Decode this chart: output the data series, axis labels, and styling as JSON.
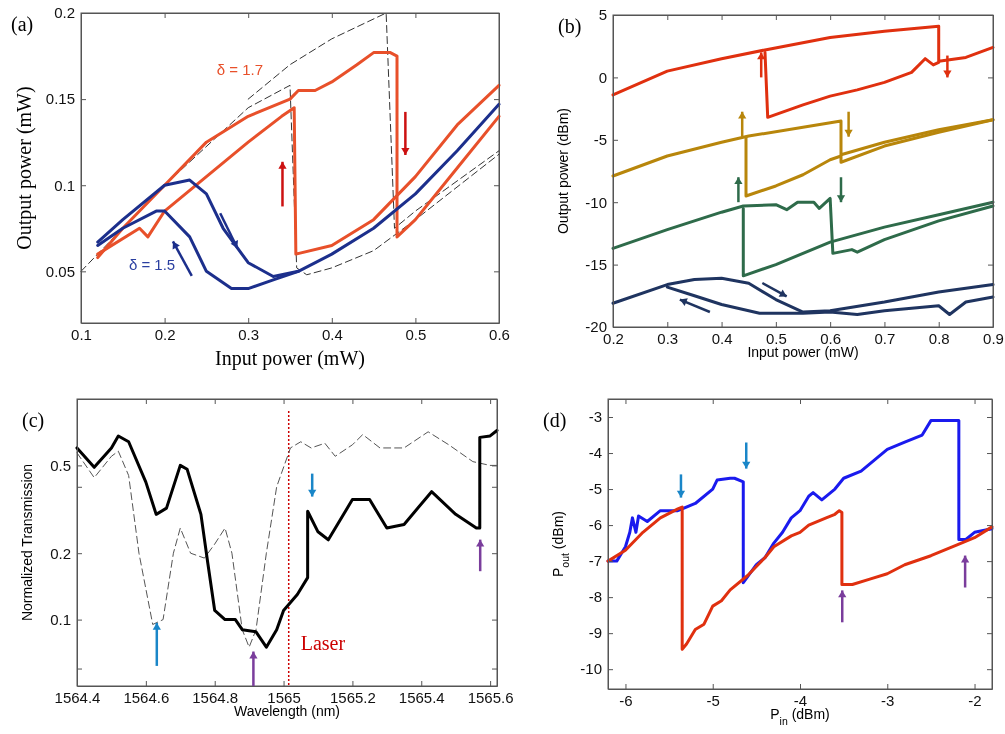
{
  "chart_data": [
    {
      "type": "line",
      "title": "(a)",
      "xlabel": "Input power (mW)",
      "ylabel": "Output power (mW)",
      "xlim": [
        0.1,
        0.6
      ],
      "ylim": [
        0.02,
        0.2
      ],
      "xticks": [
        0.1,
        0.2,
        0.3,
        0.4,
        0.5,
        0.6
      ],
      "yticks": [
        0.05,
        0.1,
        0.15,
        0.2
      ],
      "grid": false,
      "annotations": [
        "δ = 1.7",
        "δ = 1.5"
      ],
      "series": [
        {
          "color": "#333333",
          "line_style": "dashed",
          "x": [
            0.1,
            0.2,
            0.3,
            0.35,
            0.358,
            0.37,
            0.4,
            0.45,
            0.5,
            0.6
          ],
          "values": [
            0.05,
            0.1,
            0.145,
            0.158,
            0.052,
            0.048,
            0.052,
            0.062,
            0.08,
            0.118
          ]
        },
        {
          "color": "#333333",
          "line_style": "dashed",
          "x": [
            0.3,
            0.35,
            0.4,
            0.465,
            0.475,
            0.5,
            0.6
          ],
          "values": [
            0.15,
            0.17,
            0.185,
            0.2,
            0.075,
            0.085,
            0.12
          ]
        },
        {
          "color": "#e8502a",
          "x": [
            0.12,
            0.15,
            0.2,
            0.25,
            0.3,
            0.35,
            0.36,
            0.38,
            0.4,
            0.43,
            0.45,
            0.47,
            0.478,
            0.478,
            0.5,
            0.55,
            0.6
          ],
          "values": [
            0.058,
            0.075,
            0.1,
            0.125,
            0.14,
            0.15,
            0.155,
            0.155,
            0.16,
            0.17,
            0.177,
            0.177,
            0.175,
            0.07,
            0.08,
            0.11,
            0.14
          ]
        },
        {
          "color": "#e8502a",
          "x": [
            0.12,
            0.17,
            0.18,
            0.2,
            0.25,
            0.3,
            0.34,
            0.355,
            0.357,
            0.4,
            0.45,
            0.5,
            0.55,
            0.6
          ],
          "values": [
            0.06,
            0.075,
            0.07,
            0.085,
            0.105,
            0.125,
            0.14,
            0.145,
            0.06,
            0.065,
            0.08,
            0.105,
            0.135,
            0.158
          ]
        },
        {
          "color": "#1c2f8c",
          "x": [
            0.12,
            0.15,
            0.2,
            0.23,
            0.25,
            0.27,
            0.3,
            0.33,
            0.36,
            0.4,
            0.45,
            0.5,
            0.55,
            0.6
          ],
          "values": [
            0.067,
            0.08,
            0.1,
            0.103,
            0.095,
            0.075,
            0.055,
            0.047,
            0.05,
            0.06,
            0.075,
            0.095,
            0.12,
            0.147
          ]
        },
        {
          "color": "#1c2f8c",
          "x": [
            0.12,
            0.15,
            0.19,
            0.2,
            0.23,
            0.25,
            0.28,
            0.3,
            0.33,
            0.36
          ],
          "values": [
            0.065,
            0.075,
            0.085,
            0.085,
            0.07,
            0.05,
            0.04,
            0.04,
            0.045,
            0.05
          ]
        }
      ]
    },
    {
      "type": "line",
      "title": "(b)",
      "xlabel": "Input power (mW)",
      "ylabel": "Output power (dBm)",
      "xlim": [
        0.2,
        0.9
      ],
      "ylim": [
        -20,
        5
      ],
      "xticks": [
        0.2,
        0.3,
        0.4,
        0.5,
        0.6,
        0.7,
        0.8,
        0.9
      ],
      "yticks": [
        -20,
        -15,
        -10,
        -5,
        0,
        5
      ],
      "grid": false,
      "series": [
        {
          "color": "#e0300f",
          "x": [
            0.2,
            0.3,
            0.4,
            0.48,
            0.6,
            0.7,
            0.8,
            0.8,
            0.85,
            0.9
          ],
          "values": [
            -1.4,
            0.5,
            1.5,
            2.2,
            3.2,
            3.7,
            4.1,
            1.3,
            1.6,
            2.4
          ]
        },
        {
          "color": "#e0300f",
          "x": [
            0.48,
            0.485,
            0.55,
            0.6,
            0.65,
            0.7,
            0.75,
            0.775,
            0.79,
            0.8
          ],
          "values": [
            2.0,
            -3.2,
            -2.2,
            -1.5,
            -1.0,
            -0.4,
            0.4,
            1.5,
            1.0,
            1.2
          ]
        },
        {
          "color": "#b8860b",
          "x": [
            0.2,
            0.3,
            0.4,
            0.45,
            0.55,
            0.62,
            0.62,
            0.7,
            0.8,
            0.9
          ],
          "values": [
            -7.9,
            -6.3,
            -5.2,
            -4.7,
            -4.0,
            -3.5,
            -6.2,
            -5.2,
            -4.2,
            -3.4
          ]
        },
        {
          "color": "#b8860b",
          "x": [
            0.445,
            0.445,
            0.5,
            0.55,
            0.6,
            0.62,
            0.62,
            0.7,
            0.8,
            0.9
          ],
          "values": [
            -4.8,
            -9.5,
            -8.7,
            -7.8,
            -6.6,
            -6.3,
            -6.8,
            -5.5,
            -4.4,
            -3.4
          ]
        },
        {
          "color": "#2e6b4a",
          "x": [
            0.2,
            0.3,
            0.4,
            0.44,
            0.5,
            0.52,
            0.54,
            0.57,
            0.58,
            0.6,
            0.605,
            0.64,
            0.65,
            0.7,
            0.8,
            0.9
          ],
          "values": [
            -13.7,
            -12.2,
            -10.8,
            -10.3,
            -10.2,
            -10.6,
            -10.0,
            -10.0,
            -10.5,
            -9.7,
            -14.1,
            -13.8,
            -14.0,
            -13.0,
            -11.5,
            -10.3
          ]
        },
        {
          "color": "#2e6b4a",
          "x": [
            0.44,
            0.44,
            0.5,
            0.6,
            0.7,
            0.8,
            0.9
          ],
          "values": [
            -10.5,
            -15.9,
            -15.0,
            -13.2,
            -12.0,
            -11.0,
            -10.0
          ]
        },
        {
          "color": "#1f3460",
          "x": [
            0.2,
            0.3,
            0.35,
            0.4,
            0.45,
            0.5,
            0.55,
            0.6,
            0.7,
            0.8,
            0.9
          ],
          "values": [
            -18.1,
            -16.6,
            -16.2,
            -16.1,
            -16.5,
            -17.8,
            -18.8,
            -18.7,
            -18.0,
            -17.2,
            -16.6
          ]
        },
        {
          "color": "#1f3460",
          "x": [
            0.3,
            0.35,
            0.4,
            0.47,
            0.55,
            0.6,
            0.65,
            0.7,
            0.8,
            0.82,
            0.85,
            0.9
          ],
          "values": [
            -16.8,
            -17.5,
            -18.2,
            -18.9,
            -18.9,
            -18.8,
            -19.0,
            -18.7,
            -18.3,
            -19.0,
            -18.0,
            -17.6
          ]
        }
      ]
    },
    {
      "type": "line",
      "title": "(c)",
      "xlabel": "Wavelength (nm)",
      "ylabel": "Normalized Transmission",
      "log": true,
      "xlim": [
        1564.4,
        1565.62
      ],
      "ylim": [
        0.05,
        1
      ],
      "xticks": [
        1564.4,
        1564.6,
        1564.8,
        1565,
        1565.2,
        1565.4,
        1565.6
      ],
      "yticks": [
        {
          "value": 0.06,
          "label": null
        },
        0.1,
        0.2,
        {
          "value": 0.4,
          "label": null
        },
        0.5
      ],
      "grid": false,
      "ref_lines": [
        {
          "axis": "x",
          "value": 1565.015,
          "label": "Laser",
          "color": "#cc0000",
          "line_style": "dotted"
        }
      ],
      "series": [
        {
          "color": "#555555",
          "line_style": "dashed",
          "x": [
            1564.4,
            1564.45,
            1564.5,
            1564.52,
            1564.55,
            1564.58,
            1564.62,
            1564.65,
            1564.68,
            1564.7,
            1564.73,
            1564.77,
            1564.8,
            1564.83,
            1564.85,
            1564.88,
            1564.9,
            1564.92,
            1564.95,
            1564.98,
            1565.02,
            1565.05,
            1565.08,
            1565.12,
            1565.15,
            1565.2,
            1565.23,
            1565.28,
            1565.35,
            1565.42,
            1565.48,
            1565.55,
            1565.6,
            1565.62
          ],
          "values": [
            0.57,
            0.44,
            0.55,
            0.58,
            0.45,
            0.2,
            0.095,
            0.1,
            0.2,
            0.26,
            0.2,
            0.19,
            0.22,
            0.26,
            0.2,
            0.09,
            0.075,
            0.09,
            0.2,
            0.4,
            0.6,
            0.64,
            0.6,
            0.63,
            0.55,
            0.62,
            0.69,
            0.6,
            0.6,
            0.71,
            0.62,
            0.52,
            0.5,
            0.5
          ]
        },
        {
          "color": "#000000",
          "x": [
            1564.4,
            1564.45,
            1564.5,
            1564.52,
            1564.55,
            1564.6,
            1564.63,
            1564.66,
            1564.7,
            1564.72,
            1564.76,
            1564.78,
            1564.8,
            1564.83,
            1564.86,
            1564.88,
            1564.92,
            1564.95,
            1564.98,
            1565.0,
            1565.04,
            1565.07,
            1565.07,
            1565.1,
            1565.13,
            1565.2,
            1565.25,
            1565.3,
            1565.35,
            1565.43,
            1565.5,
            1565.56,
            1565.57,
            1565.57,
            1565.6,
            1565.62
          ],
          "values": [
            0.6,
            0.49,
            0.6,
            0.68,
            0.64,
            0.42,
            0.3,
            0.32,
            0.5,
            0.48,
            0.3,
            0.18,
            0.11,
            0.1,
            0.1,
            0.09,
            0.088,
            0.075,
            0.09,
            0.11,
            0.13,
            0.155,
            0.31,
            0.25,
            0.23,
            0.35,
            0.35,
            0.26,
            0.27,
            0.38,
            0.3,
            0.26,
            0.26,
            0.67,
            0.68,
            0.72
          ]
        }
      ]
    },
    {
      "type": "line",
      "title": "(d)",
      "xlabel": "P$_{in}$ (dBm)",
      "ylabel": "P$_{out}$ (dBm)",
      "xlim": [
        -6.2,
        -1.8
      ],
      "ylim": [
        -10.55,
        -2.5
      ],
      "xticks": [
        -6,
        -5,
        -4,
        -3,
        -2
      ],
      "yticks": [
        -10,
        -9,
        -8,
        -7,
        -6,
        -5,
        -4,
        -3
      ],
      "grid": false,
      "series": [
        {
          "color": "#1a1aee",
          "x": [
            -6.2,
            -6.1,
            -6.0,
            -5.95,
            -5.92,
            -5.88,
            -5.85,
            -5.75,
            -5.6,
            -5.4,
            -5.2,
            -5.0,
            -4.95,
            -4.8,
            -4.75,
            -4.65,
            -4.65,
            -4.5,
            -4.4,
            -4.3,
            -4.2,
            -4.1,
            -4.0,
            -3.9,
            -3.85,
            -3.75,
            -3.6,
            -3.5,
            -3.3,
            -3.1,
            -3.0,
            -2.8,
            -2.6,
            -2.5,
            -2.3,
            -2.18,
            -2.18,
            -2.1,
            -2.0,
            -1.8
          ],
          "values": [
            -7.0,
            -7.0,
            -6.6,
            -6.2,
            -5.8,
            -6.2,
            -5.75,
            -5.9,
            -5.6,
            -5.6,
            -5.4,
            -5.0,
            -4.75,
            -4.7,
            -4.7,
            -4.8,
            -7.6,
            -7.1,
            -6.9,
            -6.5,
            -6.2,
            -5.8,
            -5.6,
            -5.2,
            -5.1,
            -5.3,
            -5.0,
            -4.7,
            -4.5,
            -4.1,
            -3.9,
            -3.7,
            -3.5,
            -3.1,
            -3.1,
            -3.1,
            -6.4,
            -6.4,
            -6.2,
            -6.1
          ]
        },
        {
          "color": "#e0300f",
          "x": [
            -6.2,
            -6.0,
            -5.8,
            -5.6,
            -5.4,
            -5.35,
            -5.35,
            -5.3,
            -5.2,
            -5.1,
            -5.0,
            -4.9,
            -4.8,
            -4.6,
            -4.4,
            -4.3,
            -4.1,
            -4.0,
            -3.9,
            -3.7,
            -3.6,
            -3.55,
            -3.52,
            -3.52,
            -3.4,
            -3.2,
            -3.0,
            -2.8,
            -2.5,
            -2.2,
            -2.0,
            -1.8
          ],
          "values": [
            -7.0,
            -6.7,
            -6.2,
            -5.8,
            -5.55,
            -5.5,
            -9.45,
            -9.3,
            -8.9,
            -8.75,
            -8.25,
            -8.1,
            -7.8,
            -7.4,
            -6.9,
            -6.6,
            -6.3,
            -6.2,
            -6.0,
            -5.8,
            -5.7,
            -5.6,
            -5.65,
            -7.65,
            -7.65,
            -7.5,
            -7.35,
            -7.1,
            -6.85,
            -6.55,
            -6.35,
            -6.05
          ]
        }
      ]
    }
  ]
}
